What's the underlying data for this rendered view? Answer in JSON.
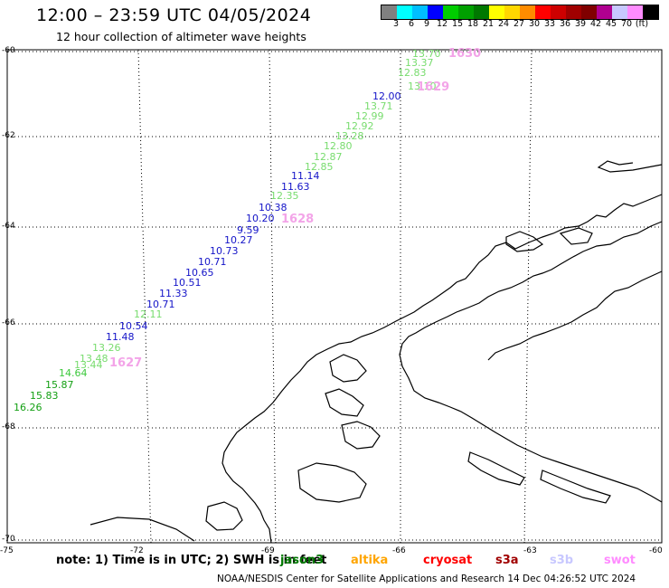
{
  "title": "12:00 – 23:59 UTC 04/05/2024",
  "subtitle": "12 hour collection of altimeter wave heights",
  "colorbar": {
    "colors": [
      "#808080",
      "#00ffff",
      "#00bfff",
      "#0000ff",
      "#00cd00",
      "#00a000",
      "#007800",
      "#ffff00",
      "#ffd700",
      "#ff8c00",
      "#ff0000",
      "#cd0000",
      "#a00000",
      "#800000",
      "#b00090",
      "#c8c8ff",
      "#ff8cff",
      "#000000"
    ],
    "labels": [
      "3",
      "6",
      "9",
      "12",
      "15",
      "18",
      "21",
      "24",
      "27",
      "30",
      "33",
      "36",
      "39",
      "42",
      "45",
      "70"
    ],
    "unit": "(ft)"
  },
  "lat_labels": [
    "-60",
    "-62",
    "-64",
    "-66",
    "-68",
    "-70"
  ],
  "lon_labels": [
    "-75",
    "-72",
    "-69",
    "-66",
    "-63",
    "-60"
  ],
  "readings": [
    {
      "value": "13.70",
      "color": "#78dc6e"
    },
    {
      "value": "13.37",
      "color": "#78dc6e"
    },
    {
      "value": "12.83",
      "color": "#78dc6e"
    },
    {
      "value": "13.10",
      "color": "#78dc6e"
    },
    {
      "value": "12.00",
      "color": "#1414c8"
    },
    {
      "value": "13.71",
      "color": "#78dc6e"
    },
    {
      "value": "12.99",
      "color": "#78dc6e"
    },
    {
      "value": "12.92",
      "color": "#78dc6e"
    },
    {
      "value": "13.28",
      "color": "#78dc6e"
    },
    {
      "value": "12.80",
      "color": "#78dc6e"
    },
    {
      "value": "12.87",
      "color": "#78dc6e"
    },
    {
      "value": "12.85",
      "color": "#78dc6e"
    },
    {
      "value": "11.14",
      "color": "#1414c8"
    },
    {
      "value": "11.63",
      "color": "#1414c8"
    },
    {
      "value": "12.35",
      "color": "#78dc6e"
    },
    {
      "value": "10.38",
      "color": "#1414c8"
    },
    {
      "value": "10.20",
      "color": "#1414c8"
    },
    {
      "value": "9.59",
      "color": "#1414c8"
    },
    {
      "value": "10.27",
      "color": "#1414c8"
    },
    {
      "value": "10.73",
      "color": "#1414c8"
    },
    {
      "value": "10.71",
      "color": "#1414c8"
    },
    {
      "value": "10.65",
      "color": "#1414c8"
    },
    {
      "value": "10.51",
      "color": "#1414c8"
    },
    {
      "value": "11.33",
      "color": "#1414c8"
    },
    {
      "value": "10.71",
      "color": "#1414c8"
    },
    {
      "value": "12.11",
      "color": "#78dc6e"
    },
    {
      "value": "10.54",
      "color": "#1414c8"
    },
    {
      "value": "11.48",
      "color": "#1414c8"
    },
    {
      "value": "13.26",
      "color": "#78dc6e"
    },
    {
      "value": "13.48",
      "color": "#78dc6e"
    },
    {
      "value": "13.44",
      "color": "#78dc6e"
    },
    {
      "value": "14.64",
      "color": "#3cc83c"
    },
    {
      "value": "15.87",
      "color": "#14a014"
    },
    {
      "value": "15.83",
      "color": "#14a014"
    },
    {
      "value": "16.26",
      "color": "#14a014"
    }
  ],
  "pass_ids": [
    "1630",
    "1629",
    "1628",
    "1627"
  ],
  "note": "note: 1) Time is in UTC; 2) SWH is in feet",
  "satellites": [
    {
      "name": "jason3",
      "color": "#007800"
    },
    {
      "name": "altika",
      "color": "#ffa500"
    },
    {
      "name": "cryosat",
      "color": "#ff0000"
    },
    {
      "name": "s3a",
      "color": "#a00000"
    },
    {
      "name": "s3b",
      "color": "#c8c8ff"
    },
    {
      "name": "swot",
      "color": "#ff8cff"
    }
  ],
  "footer": "NOAA/NESDIS Center for Satellite Applications and Research    14 Dec 04:26:52 UTC 2024"
}
